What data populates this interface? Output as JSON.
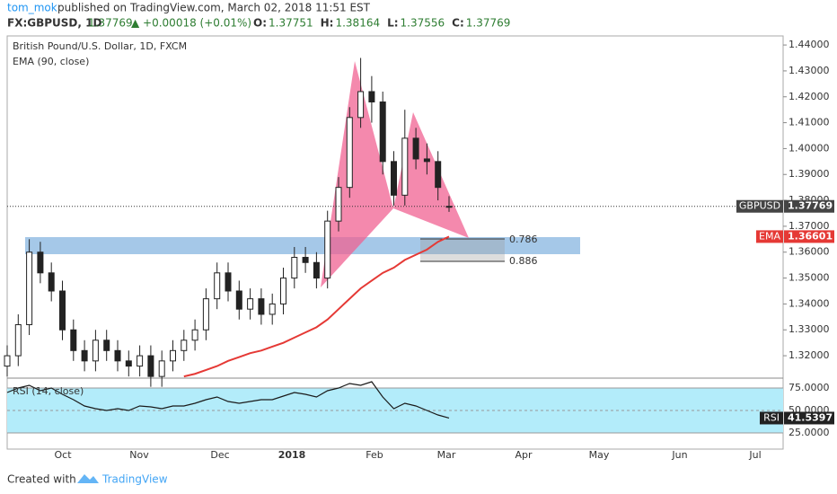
{
  "header": {
    "author": "tom_mok",
    "published": "published on TradingView.com, March 02, 2018 11:51 EST",
    "symbol": "FX:GBPUSD, 1D",
    "last": "1.37769",
    "change": "▲ +0.00018 (+0.01%)",
    "ohlc": [
      {
        "label": "O:",
        "value": "1.37751"
      },
      {
        "label": "H:",
        "value": "1.38164"
      },
      {
        "label": "L:",
        "value": "1.37556"
      },
      {
        "label": "C:",
        "value": "1.37769"
      }
    ]
  },
  "chart_data": [
    {
      "type": "candlestick",
      "title": "British Pound/U.S. Dollar, 1D, FXCM",
      "symbol_label": "GBPUSD",
      "open": [
        1.316,
        1.32,
        1.332,
        1.36,
        1.352,
        1.345,
        1.33,
        1.322,
        1.318,
        1.326,
        1.322,
        1.318,
        1.316,
        1.32,
        1.312,
        1.318,
        1.322,
        1.326,
        1.33,
        1.342,
        1.352,
        1.345,
        1.338,
        1.342,
        1.336,
        1.34,
        1.35,
        1.358,
        1.356,
        1.35,
        1.372,
        1.385,
        1.412,
        1.422,
        1.418,
        1.395,
        1.382,
        1.404,
        1.396,
        1.395,
        1.37751
      ],
      "high": [
        1.324,
        1.336,
        1.365,
        1.364,
        1.356,
        1.349,
        1.334,
        1.326,
        1.33,
        1.33,
        1.326,
        1.322,
        1.324,
        1.324,
        1.322,
        1.326,
        1.33,
        1.334,
        1.346,
        1.356,
        1.356,
        1.349,
        1.346,
        1.346,
        1.344,
        1.354,
        1.362,
        1.362,
        1.36,
        1.376,
        1.389,
        1.416,
        1.435,
        1.428,
        1.422,
        1.399,
        1.415,
        1.408,
        1.402,
        1.399,
        1.38164
      ],
      "low": [
        1.312,
        1.316,
        1.328,
        1.348,
        1.341,
        1.326,
        1.318,
        1.314,
        1.314,
        1.318,
        1.314,
        1.312,
        1.312,
        1.308,
        1.308,
        1.314,
        1.318,
        1.322,
        1.326,
        1.338,
        1.341,
        1.334,
        1.334,
        1.332,
        1.332,
        1.336,
        1.346,
        1.352,
        1.346,
        1.346,
        1.368,
        1.381,
        1.408,
        1.41,
        1.39,
        1.378,
        1.378,
        1.392,
        1.39,
        1.38,
        1.37556
      ],
      "close": [
        1.32,
        1.332,
        1.36,
        1.352,
        1.345,
        1.33,
        1.322,
        1.318,
        1.326,
        1.322,
        1.318,
        1.316,
        1.32,
        1.312,
        1.318,
        1.322,
        1.326,
        1.33,
        1.342,
        1.352,
        1.345,
        1.338,
        1.342,
        1.336,
        1.34,
        1.35,
        1.358,
        1.356,
        1.35,
        1.372,
        1.385,
        1.412,
        1.422,
        1.418,
        1.395,
        1.382,
        1.404,
        1.396,
        1.395,
        1.385,
        1.37769
      ],
      "overlay": {
        "name": "EMA (90, close)",
        "short_name": "EMA",
        "color": "#e53935",
        "values": [
          null,
          null,
          null,
          null,
          null,
          null,
          null,
          null,
          null,
          null,
          null,
          null,
          null,
          null,
          null,
          null,
          1.312,
          1.313,
          1.3145,
          1.316,
          1.318,
          1.3195,
          1.321,
          1.322,
          1.3235,
          1.325,
          1.327,
          1.329,
          1.331,
          1.334,
          1.338,
          1.342,
          1.346,
          1.349,
          1.352,
          1.354,
          1.357,
          1.359,
          1.361,
          1.364,
          1.36601
        ]
      },
      "annotations": [
        "0.786",
        "0.886"
      ],
      "time_labels": [
        "Oct",
        "Nov",
        "Dec",
        "2018",
        "Feb",
        "Mar",
        "Apr",
        "May",
        "Jun",
        "Jul"
      ],
      "ylim": [
        1.3117,
        1.4435
      ],
      "yticks": [
        {
          "value": 1.32,
          "label": "1.32000"
        },
        {
          "value": 1.33,
          "label": "1.33000"
        },
        {
          "value": 1.34,
          "label": "1.34000"
        },
        {
          "value": 1.35,
          "label": "1.35000"
        },
        {
          "value": 1.36,
          "label": "1.36000"
        },
        {
          "value": 1.37,
          "label": "1.37000"
        },
        {
          "value": 1.38,
          "label": "1.38000"
        },
        {
          "value": 1.39,
          "label": "1.39000"
        },
        {
          "value": 1.4,
          "label": "1.40000"
        },
        {
          "value": 1.41,
          "label": "1.41000"
        },
        {
          "value": 1.42,
          "label": "1.42000"
        },
        {
          "value": 1.43,
          "label": "1.43000"
        },
        {
          "value": 1.44,
          "label": "1.44000"
        }
      ]
    },
    {
      "type": "line",
      "title": "RSI (14, close)",
      "short_name": "RSI",
      "color": "#1a1a1a",
      "values": [
        70,
        75,
        78,
        72,
        75,
        68,
        62,
        55,
        52,
        50,
        52,
        50,
        55,
        54,
        52,
        55,
        55,
        58,
        62,
        65,
        60,
        58,
        60,
        62,
        62,
        66,
        70,
        68,
        65,
        72,
        75,
        80,
        78,
        82,
        65,
        52,
        58,
        55,
        50,
        45,
        41.5397
      ],
      "ylim": [
        7,
        85
      ],
      "yticks": [
        {
          "value": 25,
          "label": "25.0000"
        },
        {
          "value": 50,
          "label": "50.0000"
        },
        {
          "value": 75,
          "label": "75.0000"
        }
      ]
    }
  ],
  "footer": {
    "created": "Created with",
    "brand": "TradingView"
  }
}
